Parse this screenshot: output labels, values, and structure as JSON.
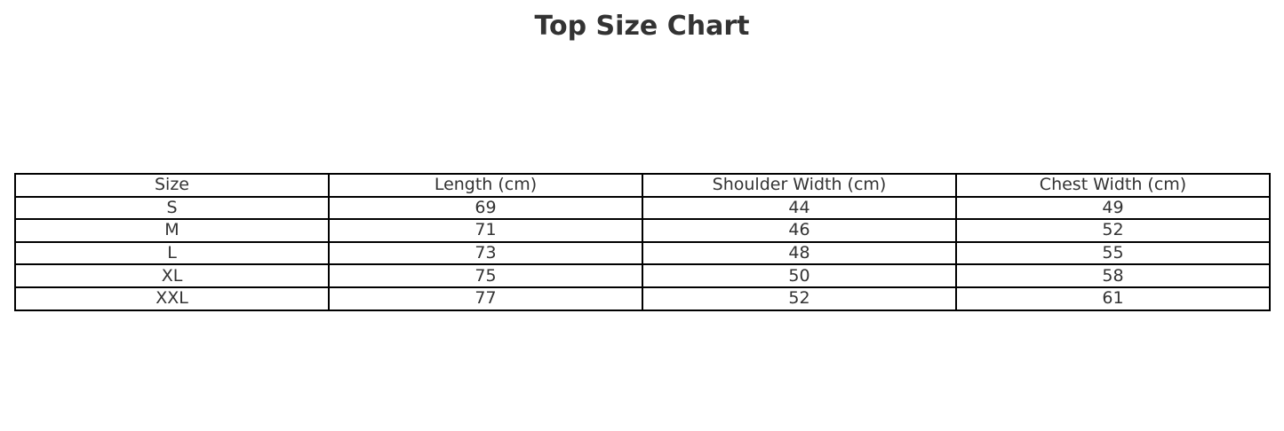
{
  "chart_data": {
    "type": "table",
    "title": "Top Size Chart",
    "columns": [
      "Size",
      "Length (cm)",
      "Shoulder Width (cm)",
      "Chest Width (cm)"
    ],
    "rows": [
      [
        "S",
        "69",
        "44",
        "49"
      ],
      [
        "M",
        "71",
        "46",
        "52"
      ],
      [
        "L",
        "73",
        "48",
        "55"
      ],
      [
        "XL",
        "75",
        "50",
        "58"
      ],
      [
        "XXL",
        "77",
        "52",
        "61"
      ]
    ]
  }
}
